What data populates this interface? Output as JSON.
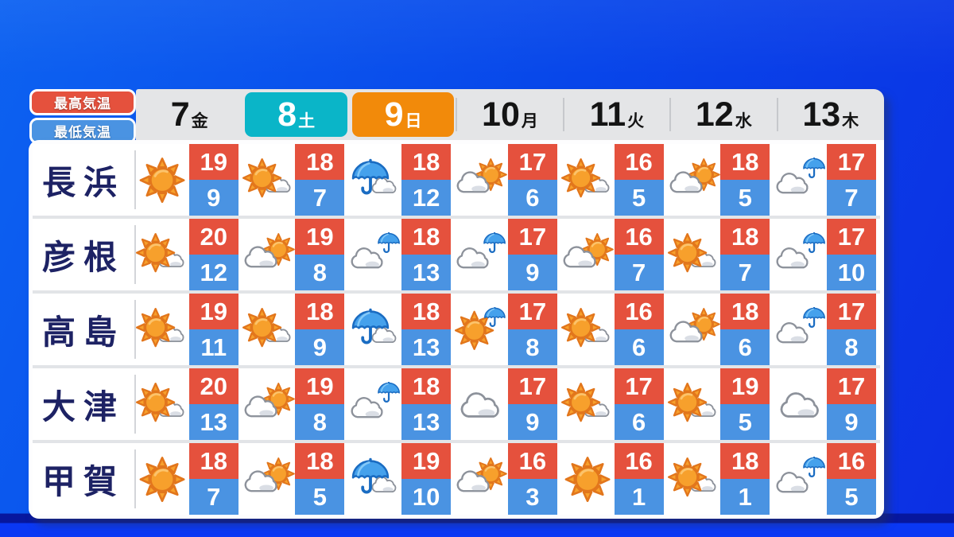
{
  "legend": {
    "high_label": "最高気温",
    "low_label": "最低気温"
  },
  "colors": {
    "high": "#e5513d",
    "low": "#4a93e2",
    "saturday": "#0ab5c8",
    "sunday": "#f28a0a",
    "headerbg": "#e4e5e7",
    "city": "#1d2264",
    "bg1": "#0d62f1",
    "bg2": "#0847ea",
    "bg3": "#0c2fe3"
  },
  "chart_data": {
    "type": "table",
    "columns": [
      {
        "day": "7",
        "weekday": "金",
        "highlight": "none"
      },
      {
        "day": "8",
        "weekday": "土",
        "highlight": "teal"
      },
      {
        "day": "9",
        "weekday": "日",
        "highlight": "orange"
      },
      {
        "day": "10",
        "weekday": "月",
        "highlight": "none"
      },
      {
        "day": "11",
        "weekday": "火",
        "highlight": "none"
      },
      {
        "day": "12",
        "weekday": "水",
        "highlight": "none"
      },
      {
        "day": "13",
        "weekday": "木",
        "highlight": "none"
      }
    ],
    "rows": [
      {
        "city": "長浜",
        "cells": [
          {
            "icon": "sunny",
            "high": "19",
            "low": "9"
          },
          {
            "icon": "sunny-then-cloudy",
            "high": "18",
            "low": "7"
          },
          {
            "icon": "rainy-then-cloudy",
            "high": "18",
            "low": "12"
          },
          {
            "icon": "cloudy-then-sunny",
            "high": "17",
            "low": "6"
          },
          {
            "icon": "sunny-then-cloudy",
            "high": "16",
            "low": "5"
          },
          {
            "icon": "cloudy-then-sunny",
            "high": "18",
            "low": "5"
          },
          {
            "icon": "cloudy-then-rainy",
            "high": "17",
            "low": "7"
          }
        ]
      },
      {
        "city": "彦根",
        "cells": [
          {
            "icon": "sunny-then-cloudy",
            "high": "20",
            "low": "12"
          },
          {
            "icon": "cloudy-then-sunny",
            "high": "19",
            "low": "8"
          },
          {
            "icon": "cloudy-then-rainy",
            "high": "18",
            "low": "13"
          },
          {
            "icon": "cloudy-then-rainy",
            "high": "17",
            "low": "9"
          },
          {
            "icon": "cloudy-then-sunny",
            "high": "16",
            "low": "7"
          },
          {
            "icon": "sunny-then-cloudy",
            "high": "18",
            "low": "7"
          },
          {
            "icon": "cloudy-then-rainy",
            "high": "17",
            "low": "10"
          }
        ]
      },
      {
        "city": "高島",
        "cells": [
          {
            "icon": "sunny-then-cloudy",
            "high": "19",
            "low": "11"
          },
          {
            "icon": "sunny-then-cloudy",
            "high": "18",
            "low": "9"
          },
          {
            "icon": "rainy-then-cloudy",
            "high": "18",
            "low": "13"
          },
          {
            "icon": "sunny-then-rainy",
            "high": "17",
            "low": "8"
          },
          {
            "icon": "sunny-then-cloudy",
            "high": "16",
            "low": "6"
          },
          {
            "icon": "cloudy-then-sunny",
            "high": "18",
            "low": "6"
          },
          {
            "icon": "cloudy-then-rainy",
            "high": "17",
            "low": "8"
          }
        ]
      },
      {
        "city": "大津",
        "cells": [
          {
            "icon": "sunny-then-cloudy",
            "high": "20",
            "low": "13"
          },
          {
            "icon": "cloudy-then-sunny",
            "high": "19",
            "low": "8"
          },
          {
            "icon": "cloudy-then-rainy",
            "high": "18",
            "low": "13"
          },
          {
            "icon": "cloudy",
            "high": "17",
            "low": "9"
          },
          {
            "icon": "sunny-then-cloudy",
            "high": "17",
            "low": "6"
          },
          {
            "icon": "sunny-then-cloudy",
            "high": "19",
            "low": "5"
          },
          {
            "icon": "cloudy",
            "high": "17",
            "low": "9"
          }
        ]
      },
      {
        "city": "甲賀",
        "cells": [
          {
            "icon": "sunny",
            "high": "18",
            "low": "7"
          },
          {
            "icon": "cloudy-then-sunny",
            "high": "18",
            "low": "5"
          },
          {
            "icon": "rainy-then-cloudy",
            "high": "19",
            "low": "10"
          },
          {
            "icon": "cloudy-then-sunny",
            "high": "16",
            "low": "3"
          },
          {
            "icon": "sunny",
            "high": "16",
            "low": "1"
          },
          {
            "icon": "sunny-then-cloudy",
            "high": "18",
            "low": "1"
          },
          {
            "icon": "cloudy-then-rainy",
            "high": "16",
            "low": "5"
          }
        ]
      }
    ]
  }
}
